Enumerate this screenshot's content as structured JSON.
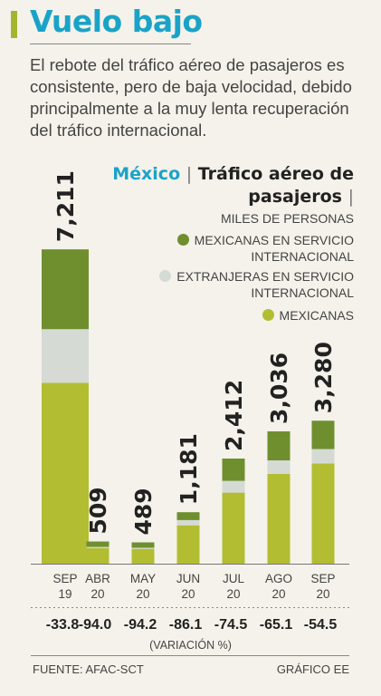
{
  "header": {
    "title": "Vuelo bajo",
    "intro": "El rebote del tráfico aéreo de pasajeros es consistente, pero de baja velocidad, debido principalmente a la muy lenta recuperación del tráfico internacional."
  },
  "legend": {
    "country": "México",
    "title": "Tráfico aéreo de pasajeros",
    "units": "MILES DE PERSONAS",
    "items": [
      {
        "label": "MEXICANAS EN SERVICIO INTERNACIONAL",
        "color": "#6f8f2f"
      },
      {
        "label": "EXTRANJERAS EN SERVICIO INTERNACIONAL",
        "color": "#d5dad5"
      },
      {
        "label": "MEXICANAS",
        "color": "#b2bd31"
      }
    ]
  },
  "chart_data": {
    "type": "bar",
    "stacked": true,
    "title": "Tráfico aéreo de pasajeros",
    "units": "MILES DE PERSONAS",
    "categories": [
      "SEP 19",
      "ABR 20",
      "MAY 20",
      "JUN 20",
      "JUL 20",
      "AGO 20",
      "SEP 20"
    ],
    "totals": [
      7211,
      509,
      489,
      1181,
      2412,
      3036,
      3280
    ],
    "totals_labels": [
      "7,211",
      "509",
      "489",
      "1,181",
      "2,412",
      "3,036",
      "3,280"
    ],
    "series": [
      {
        "name": "MEXICANAS",
        "color": "#b2bd31",
        "values": [
          4150,
          360,
          340,
          880,
          1630,
          2060,
          2300
        ]
      },
      {
        "name": "EXTRANJERAS EN SERVICIO INTERNACIONAL",
        "color": "#d5dad5",
        "values": [
          1230,
          25,
          25,
          120,
          270,
          310,
          330
        ]
      },
      {
        "name": "MEXICANAS EN SERVICIO INTERNACIONAL",
        "color": "#6f8f2f",
        "values": [
          1831,
          124,
          124,
          181,
          512,
          666,
          650
        ]
      }
    ],
    "variation": {
      "label": "(VARIACIÓN %)",
      "values": [
        "-33.8",
        "-94.0",
        "-94.2",
        "-86.1",
        "-74.5",
        "-65.1",
        "-54.5"
      ]
    }
  },
  "footer": {
    "source": "FUENTE: AFAC-SCT",
    "credit": "GRÁFICO EE"
  }
}
